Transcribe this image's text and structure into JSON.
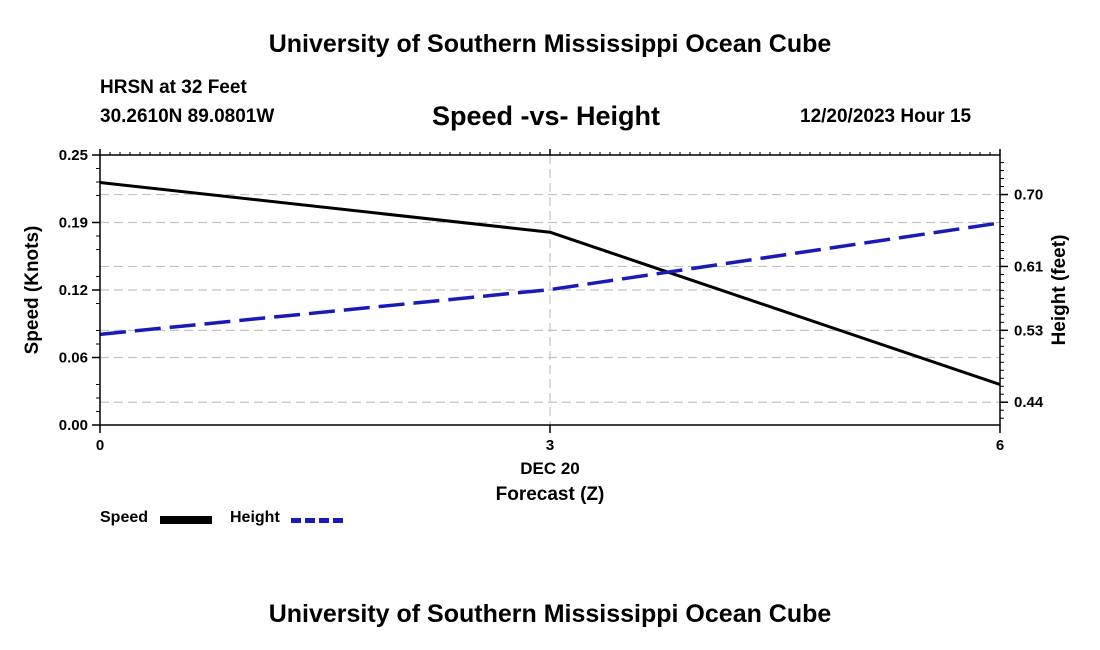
{
  "header": {
    "title": "University of Southern Mississippi Ocean Cube",
    "station": "HRSN at 32 Feet",
    "coordinates": "30.2610N  89.0801W",
    "subtitle": "Speed -vs- Height",
    "datetime": "12/20/2023 Hour 15"
  },
  "footer": {
    "title": "University of Southern Mississippi Ocean Cube"
  },
  "legend": {
    "speed_label": "Speed",
    "height_label": "Height"
  },
  "chart_data": {
    "type": "line",
    "title": "Speed -vs- Height",
    "xlabel": "Forecast (Z)",
    "x_date_label": "DEC 20",
    "ylabel_left": "Speed (Knots)",
    "ylabel_right": "Height (feet)",
    "x": [
      0,
      3,
      6
    ],
    "x_ticks": [
      "0",
      "3",
      "6"
    ],
    "xlim": [
      0,
      6
    ],
    "ylim_left": [
      0,
      0.25
    ],
    "ylim_right": [
      0.4115,
      0.7495
    ],
    "left_ticks": [
      "0.00",
      "0.06",
      "0.12",
      "0.19",
      "0.25"
    ],
    "right_ticks": [
      "0.44",
      "0.53",
      "0.61",
      "0.70"
    ],
    "right_tick_values": [
      0.44,
      0.53,
      0.61,
      0.7
    ],
    "grid": true,
    "series": [
      {
        "name": "Speed",
        "axis": "left",
        "color": "#000000",
        "style": "solid",
        "values": [
          0.2245,
          0.1785,
          0.0375
        ]
      },
      {
        "name": "Height",
        "axis": "right",
        "color": "#1a1ab8",
        "style": "dashed",
        "values": [
          0.525,
          0.581,
          0.6645
        ]
      }
    ]
  }
}
